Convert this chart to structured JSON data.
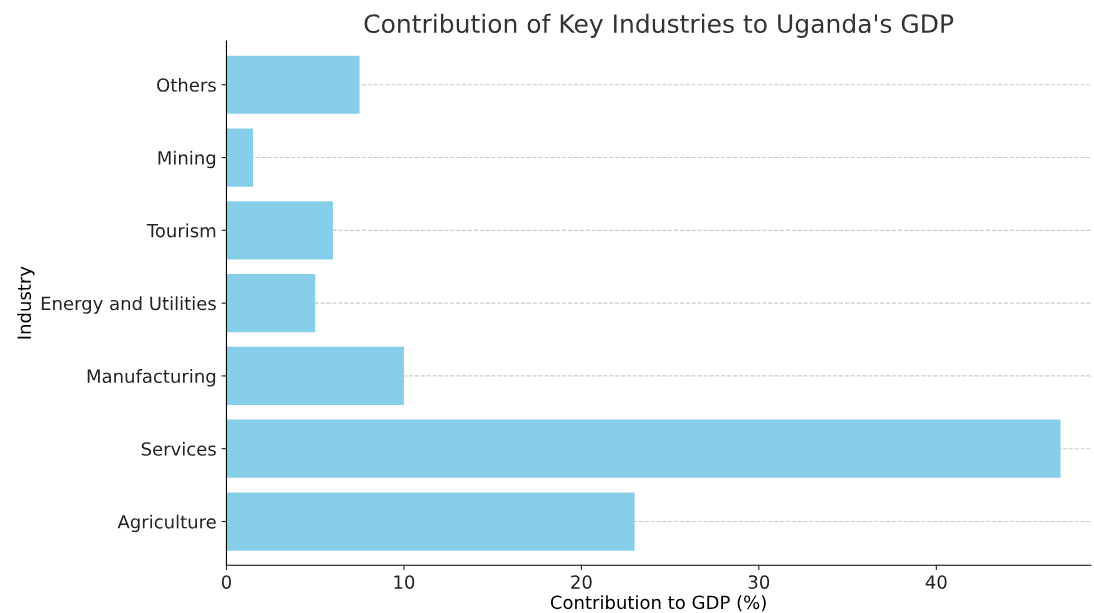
{
  "chart_data": {
    "type": "bar",
    "orientation": "horizontal",
    "title": "Contribution of Key Industries to Uganda's GDP",
    "xlabel": "Contribution to GDP (%)",
    "ylabel": "Industry",
    "categories": [
      "Others",
      "Mining",
      "Tourism",
      "Energy and Utilities",
      "Manufacturing",
      "Services",
      "Agriculture"
    ],
    "values": [
      7.5,
      1.5,
      6,
      5,
      10,
      47,
      23
    ],
    "color": "#87ceeb",
    "xlim": [
      0,
      48.7
    ],
    "xticks": [
      0,
      10,
      20,
      30,
      40
    ],
    "grid": "y"
  }
}
